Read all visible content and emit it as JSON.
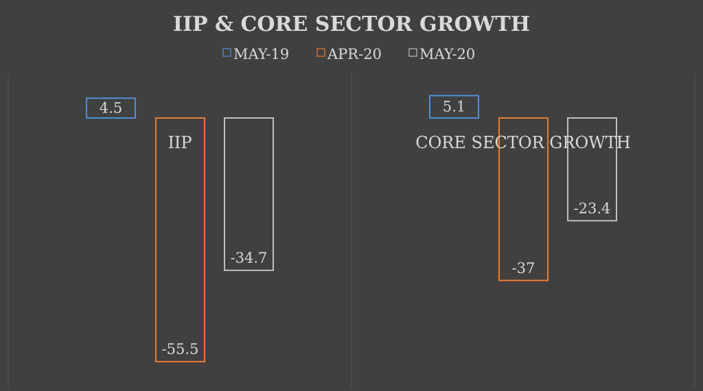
{
  "chart_data": {
    "type": "bar",
    "title": "IIP & CORE SECTOR GROWTH",
    "categories": [
      "IIP",
      "CORE SECTOR GROWTH"
    ],
    "series": [
      {
        "name": "MAY-19",
        "values": [
          4.5,
          5.1
        ]
      },
      {
        "name": "APR-20",
        "values": [
          -55.5,
          -37
        ]
      },
      {
        "name": "MAY-20",
        "values": [
          -34.7,
          -23.4
        ]
      }
    ],
    "data_labels": [
      [
        "4.5",
        "5.1"
      ],
      [
        "-55.5",
        "-37"
      ],
      [
        "-34.7",
        "-23.4"
      ]
    ],
    "legend_placement": "top",
    "grid": false
  },
  "colors": {
    "background": "#404040",
    "text": "#d9d9d9",
    "series": [
      "#4f8fd6",
      "#ed7d31",
      "#bfbfbf"
    ],
    "divider": "#555555"
  }
}
